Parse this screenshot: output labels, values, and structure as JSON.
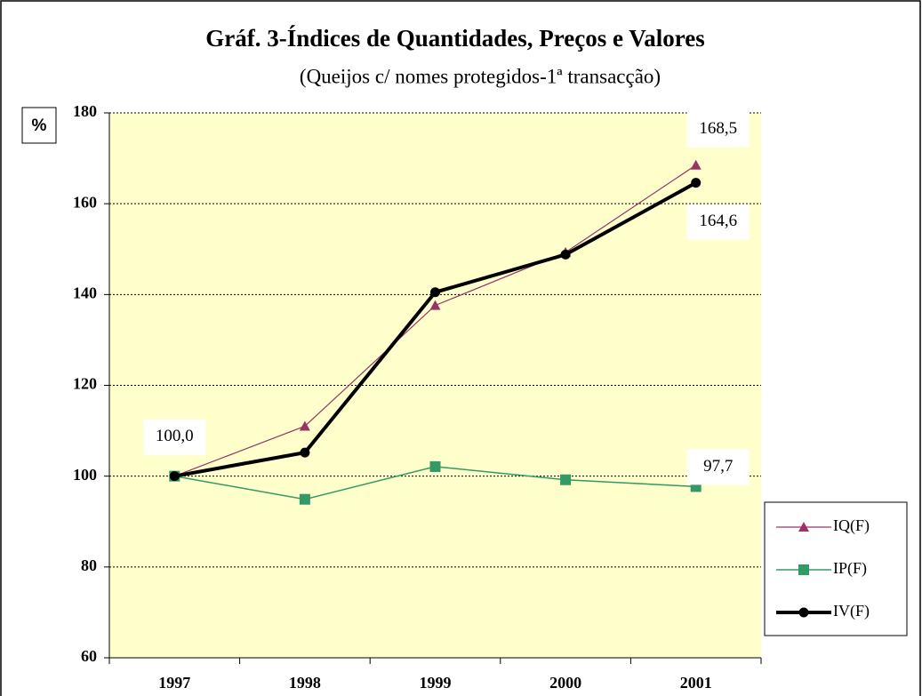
{
  "chart_data": {
    "type": "line",
    "title": "Gráf. 3-Índices de Quantidades, Preços e Valores",
    "subtitle": "(Queijos c/ nomes protegidos-1ª transacção)",
    "y_label": "%",
    "categories": [
      "1997",
      "1998",
      "1999",
      "2000",
      "2001"
    ],
    "series": [
      {
        "name": "IQ(F)",
        "color": "#993366",
        "marker": "triangle",
        "values": [
          100,
          111,
          137.6,
          149.3,
          168.5
        ],
        "value_labels": [
          "100,0",
          null,
          null,
          null,
          "168,5"
        ]
      },
      {
        "name": "IP(F)",
        "color": "#339966",
        "marker": "square",
        "values": [
          100,
          94.9,
          102.1,
          99.2,
          97.7
        ],
        "value_labels": [
          null,
          null,
          null,
          null,
          "97,7"
        ]
      },
      {
        "name": "IV(F)",
        "color": "#000000",
        "marker": "circle",
        "values": [
          100,
          105.2,
          140.5,
          148.8,
          164.6
        ],
        "value_labels": [
          null,
          null,
          null,
          null,
          "164,6"
        ]
      }
    ],
    "ylim": [
      60,
      180
    ],
    "yticks": [
      60,
      80,
      100,
      120,
      140,
      160,
      180
    ],
    "grid": true,
    "legend": "right"
  }
}
